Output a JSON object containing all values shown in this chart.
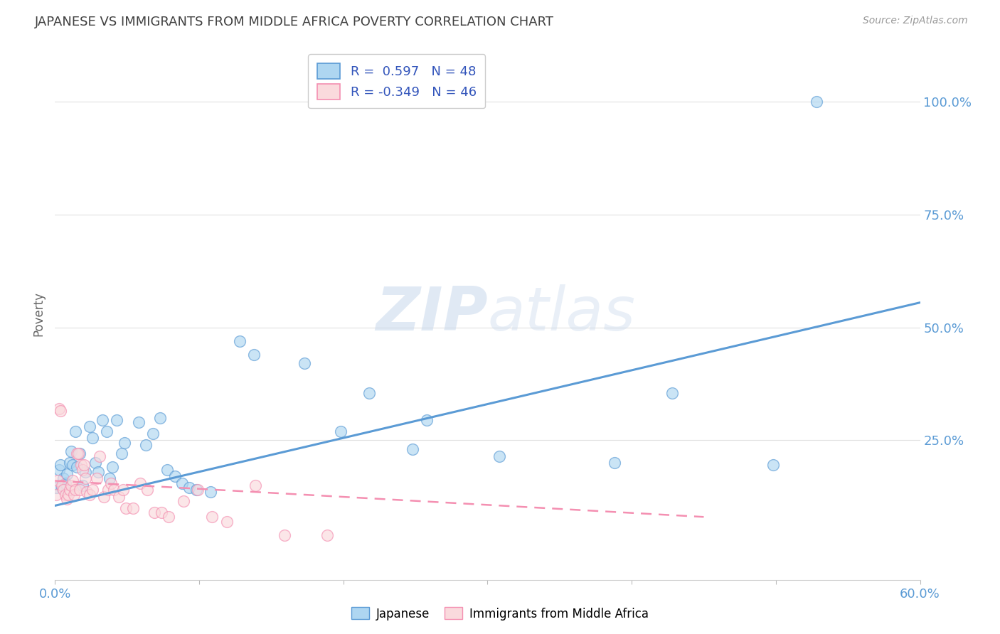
{
  "title": "JAPANESE VS IMMIGRANTS FROM MIDDLE AFRICA POVERTY CORRELATION CHART",
  "source": "Source: ZipAtlas.com",
  "ylabel": "Poverty",
  "ytick_labels_right": [
    "100.0%",
    "75.0%",
    "50.0%",
    "25.0%"
  ],
  "ytick_values": [
    1.0,
    0.75,
    0.5,
    0.25
  ],
  "xmin": 0.0,
  "xmax": 0.6,
  "ymin": -0.06,
  "ymax": 1.12,
  "legend_line1": "R =  0.597   N = 48",
  "legend_line2": "R = -0.349   N = 46",
  "watermark_zip": "ZIP",
  "watermark_atlas": "atlas",
  "blue_color": "#5b9bd5",
  "pink_color": "#f48fb1",
  "blue_face": "#aed6f1",
  "pink_face": "#fadadd",
  "title_color": "#404040",
  "axis_color": "#5b9bd5",
  "source_color": "#999999",
  "ylabel_color": "#666666",
  "blue_scatter": [
    [
      0.001,
      0.145
    ],
    [
      0.003,
      0.185
    ],
    [
      0.004,
      0.195
    ],
    [
      0.005,
      0.145
    ],
    [
      0.006,
      0.165
    ],
    [
      0.007,
      0.155
    ],
    [
      0.008,
      0.175
    ],
    [
      0.01,
      0.2
    ],
    [
      0.011,
      0.225
    ],
    [
      0.012,
      0.195
    ],
    [
      0.014,
      0.27
    ],
    [
      0.015,
      0.19
    ],
    [
      0.017,
      0.22
    ],
    [
      0.019,
      0.15
    ],
    [
      0.021,
      0.18
    ],
    [
      0.024,
      0.28
    ],
    [
      0.026,
      0.255
    ],
    [
      0.028,
      0.2
    ],
    [
      0.03,
      0.18
    ],
    [
      0.033,
      0.295
    ],
    [
      0.036,
      0.27
    ],
    [
      0.038,
      0.165
    ],
    [
      0.04,
      0.19
    ],
    [
      0.043,
      0.295
    ],
    [
      0.046,
      0.22
    ],
    [
      0.048,
      0.245
    ],
    [
      0.058,
      0.29
    ],
    [
      0.063,
      0.24
    ],
    [
      0.068,
      0.265
    ],
    [
      0.073,
      0.3
    ],
    [
      0.078,
      0.185
    ],
    [
      0.083,
      0.17
    ],
    [
      0.088,
      0.155
    ],
    [
      0.093,
      0.145
    ],
    [
      0.098,
      0.14
    ],
    [
      0.108,
      0.135
    ],
    [
      0.128,
      0.47
    ],
    [
      0.138,
      0.44
    ],
    [
      0.173,
      0.42
    ],
    [
      0.198,
      0.27
    ],
    [
      0.218,
      0.355
    ],
    [
      0.248,
      0.23
    ],
    [
      0.258,
      0.295
    ],
    [
      0.308,
      0.215
    ],
    [
      0.388,
      0.2
    ],
    [
      0.428,
      0.355
    ],
    [
      0.498,
      0.195
    ],
    [
      0.528,
      1.0
    ]
  ],
  "pink_scatter": [
    [
      0.001,
      0.13
    ],
    [
      0.002,
      0.16
    ],
    [
      0.003,
      0.32
    ],
    [
      0.004,
      0.315
    ],
    [
      0.005,
      0.15
    ],
    [
      0.006,
      0.14
    ],
    [
      0.007,
      0.13
    ],
    [
      0.008,
      0.12
    ],
    [
      0.009,
      0.13
    ],
    [
      0.01,
      0.14
    ],
    [
      0.011,
      0.15
    ],
    [
      0.012,
      0.16
    ],
    [
      0.013,
      0.13
    ],
    [
      0.014,
      0.14
    ],
    [
      0.015,
      0.22
    ],
    [
      0.016,
      0.22
    ],
    [
      0.017,
      0.14
    ],
    [
      0.018,
      0.195
    ],
    [
      0.019,
      0.185
    ],
    [
      0.02,
      0.195
    ],
    [
      0.021,
      0.165
    ],
    [
      0.022,
      0.135
    ],
    [
      0.024,
      0.13
    ],
    [
      0.026,
      0.14
    ],
    [
      0.029,
      0.165
    ],
    [
      0.031,
      0.215
    ],
    [
      0.034,
      0.125
    ],
    [
      0.037,
      0.14
    ],
    [
      0.039,
      0.155
    ],
    [
      0.041,
      0.14
    ],
    [
      0.044,
      0.125
    ],
    [
      0.047,
      0.14
    ],
    [
      0.049,
      0.1
    ],
    [
      0.054,
      0.1
    ],
    [
      0.059,
      0.155
    ],
    [
      0.064,
      0.14
    ],
    [
      0.069,
      0.09
    ],
    [
      0.074,
      0.09
    ],
    [
      0.079,
      0.08
    ],
    [
      0.089,
      0.115
    ],
    [
      0.099,
      0.14
    ],
    [
      0.109,
      0.08
    ],
    [
      0.119,
      0.07
    ],
    [
      0.139,
      0.15
    ],
    [
      0.159,
      0.04
    ],
    [
      0.189,
      0.04
    ]
  ],
  "blue_line": [
    [
      0.0,
      0.105
    ],
    [
      0.6,
      0.555
    ]
  ],
  "pink_line": [
    [
      0.0,
      0.16
    ],
    [
      0.45,
      0.08
    ]
  ],
  "grid_color": "#e0e0e0",
  "background_color": "#ffffff",
  "legend_blue_face": "#aed6f1",
  "legend_pink_face": "#fadadd",
  "legend_border": "#cccccc"
}
